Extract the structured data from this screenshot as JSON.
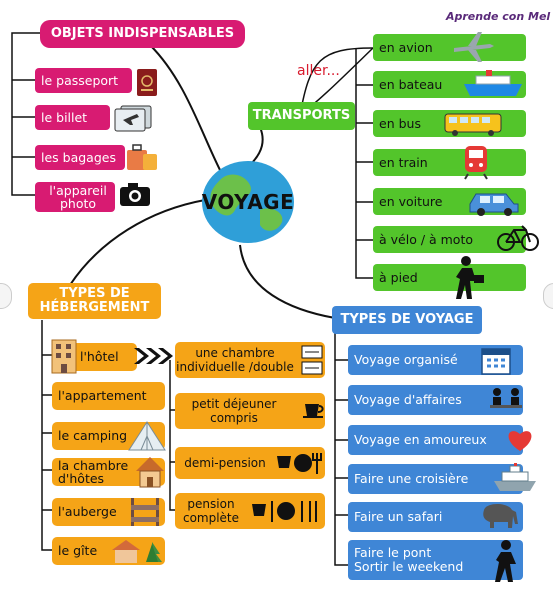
{
  "brand": "Aprende con Mel",
  "center": {
    "label": "VOYAGE"
  },
  "objets": {
    "title": "OBJETS INDISPENSABLES",
    "items": [
      {
        "label": "le passeport",
        "icon": "passport-icon"
      },
      {
        "label": "le billet",
        "icon": "ticket-icon"
      },
      {
        "label": "les bagages",
        "icon": "luggage-icon"
      },
      {
        "label": "l'appareil photo",
        "icon": "camera-icon"
      }
    ]
  },
  "transports": {
    "title": "TRANSPORTS",
    "aller": "aller...",
    "items": [
      {
        "label": "en avion",
        "icon": "airplane-icon"
      },
      {
        "label": "en bateau",
        "icon": "ship-icon"
      },
      {
        "label": "en bus",
        "icon": "bus-icon"
      },
      {
        "label": "en train",
        "icon": "train-icon"
      },
      {
        "label": "en voiture",
        "icon": "car-icon"
      },
      {
        "label": "à vélo / à moto",
        "icon": "bicycle-icon"
      },
      {
        "label": "à pied",
        "icon": "walking-person-icon"
      }
    ]
  },
  "hebergement": {
    "title": "TYPES DE HÉBERGEMENT",
    "title_line1": "TYPES DE",
    "title_line2": "HÉBERGEMENT",
    "items": [
      {
        "label": "l'hôtel",
        "icon": "hotel-icon"
      },
      {
        "label": "l'appartement"
      },
      {
        "label": "le camping",
        "icon": "tent-icon"
      },
      {
        "label": "la chambre d'hôtes",
        "icon": "house-icon"
      },
      {
        "label": "l'auberge",
        "icon": "bunk-bed-icon"
      },
      {
        "label": "le gîte",
        "icon": "cottage-icon"
      }
    ],
    "options": [
      {
        "label": "une chambre individuelle /double",
        "icon": "beds-icon"
      },
      {
        "label": "petit déjeuner compris",
        "icon": "coffee-cup-icon"
      },
      {
        "label": "demi-pension",
        "icon": "half-board-icon"
      },
      {
        "label": "pension complète",
        "icon": "full-board-icon"
      }
    ]
  },
  "voyage": {
    "title": "TYPES DE VOYAGE",
    "items": [
      {
        "label": "Voyage organisé",
        "icon": "calendar-icon"
      },
      {
        "label": "Voyage d'affaires",
        "icon": "meeting-icon"
      },
      {
        "label": "Voyage en amoureux",
        "icon": "heart-icon"
      },
      {
        "label": "Faire une croisière",
        "icon": "cruise-ship-icon"
      },
      {
        "label": "Faire un safari",
        "icon": "elephant-icon"
      },
      {
        "label": "Faire le pont",
        "label2": "Sortir le weekend",
        "icon": "walking-person-icon"
      }
    ]
  },
  "colors": {
    "objets": "#d81b72",
    "transports": "#53c52b",
    "hebergement": "#f5a417",
    "voyage": "#3f86d6"
  }
}
